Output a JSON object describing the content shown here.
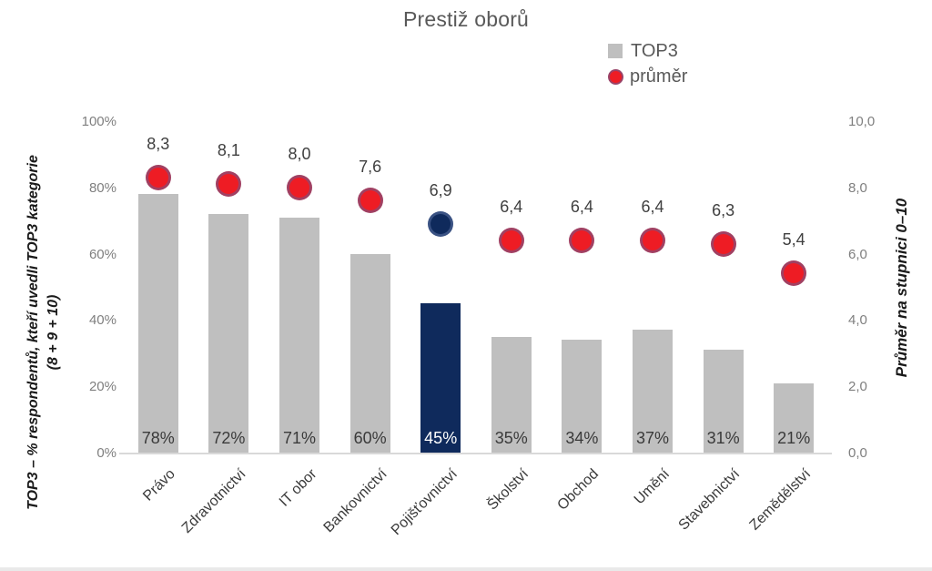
{
  "title": "Prestiž oborů",
  "legend": {
    "items": [
      {
        "label": "TOP3",
        "marker": "square-icon",
        "color": "#bfbfbf"
      },
      {
        "label": "průměr",
        "marker": "circle-icon",
        "color": "#ee1c24"
      }
    ]
  },
  "left_axis": {
    "title_line1": "TOP3 – % respondentů, kteří uvedli TOP3 kategorie",
    "title_line2": "(8 + 9 + 10)",
    "ticks": [
      "100%",
      "80%",
      "60%",
      "40%",
      "20%",
      "0%"
    ],
    "range": [
      0,
      100
    ]
  },
  "right_axis": {
    "title": "Průměr na stupnici 0–10",
    "ticks": [
      "10,0",
      "8,0",
      "6,0",
      "4,0",
      "2,0",
      "0,0"
    ],
    "range": [
      0,
      10
    ]
  },
  "chart_data": {
    "type": "bar",
    "title": "Prestiž oborů",
    "categories": [
      "Právo",
      "Zdravotnictví",
      "IT obor",
      "Bankovnictví",
      "Pojišťovnictví",
      "Školství",
      "Obchod",
      "Umění",
      "Stavebnictví",
      "Zemědělství"
    ],
    "series": [
      {
        "name": "TOP3",
        "render": "bar",
        "axis": "left",
        "values": [
          78,
          72,
          71,
          60,
          45,
          35,
          34,
          37,
          31,
          21
        ],
        "labels": [
          "78%",
          "72%",
          "71%",
          "60%",
          "45%",
          "35%",
          "34%",
          "37%",
          "31%",
          "21%"
        ]
      },
      {
        "name": "průměr",
        "render": "scatter",
        "axis": "right",
        "values": [
          8.3,
          8.1,
          8.0,
          7.6,
          6.9,
          6.4,
          6.4,
          6.4,
          6.3,
          5.4
        ],
        "labels": [
          "8,3",
          "8,1",
          "8,0",
          "7,6",
          "6,9",
          "6,4",
          "6,4",
          "6,4",
          "6,3",
          "5,4"
        ]
      }
    ],
    "highlight_index": 4,
    "left_ylim": [
      0,
      100
    ],
    "right_ylim": [
      0,
      10
    ],
    "grid": false,
    "legend_position": "top-right",
    "colors": {
      "bar": "#bfbfbf",
      "bar_highlight": "#0f2a5c",
      "dot": "#ee1c24",
      "dot_highlight": "#0f2a5c",
      "title_text": "#595959",
      "tick_text": "#7f7f7f",
      "label_text": "#404040",
      "highlight_label_text": "#ffffff"
    }
  }
}
